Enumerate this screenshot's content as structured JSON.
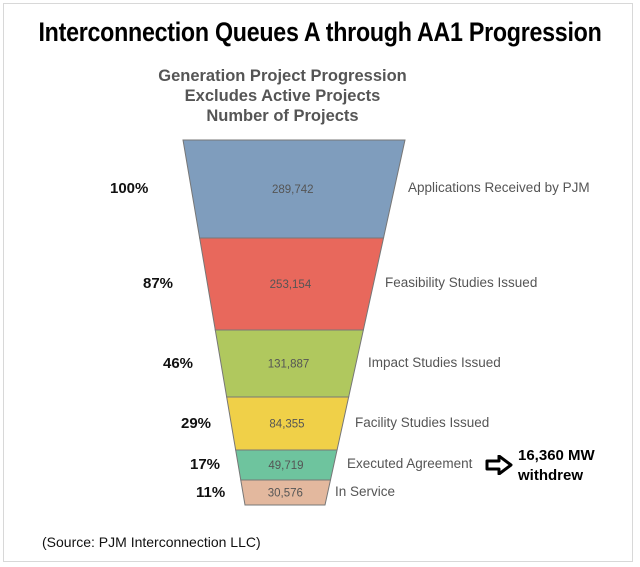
{
  "title": "Interconnection Queues A through AA1 Progression",
  "subtitles": [
    "Generation Project Progression",
    "Excludes Active Projects",
    "Number of Projects"
  ],
  "chart_data": {
    "type": "funnel",
    "title": "Generation Project Progression",
    "stages": [
      {
        "label": "Applications Received by PJM",
        "value": 289742,
        "value_label": "289,742",
        "percent": "100%",
        "color": "#7f9dbd"
      },
      {
        "label": "Feasibility Studies Issued",
        "value": 253154,
        "value_label": "253,154",
        "percent": "87%",
        "color": "#e8685c"
      },
      {
        "label": "Impact Studies Issued",
        "value": 131887,
        "value_label": "131,887",
        "percent": "46%",
        "color": "#b0c85e"
      },
      {
        "label": "Facility Studies Issued",
        "value": 84355,
        "value_label": "84,355",
        "percent": "29%",
        "color": "#f0d048"
      },
      {
        "label": "Executed Agreement",
        "value": 49719,
        "value_label": "49,719",
        "percent": "17%",
        "color": "#6ec49e"
      },
      {
        "label": "In Service",
        "value": 30576,
        "value_label": "30,576",
        "percent": "11%",
        "color": "#e3b89e"
      }
    ]
  },
  "annotation": {
    "line1": "16,360 MW",
    "line2": "withdrew",
    "icon": "right-arrow-icon"
  },
  "source": "(Source: PJM Interconnection LLC)"
}
